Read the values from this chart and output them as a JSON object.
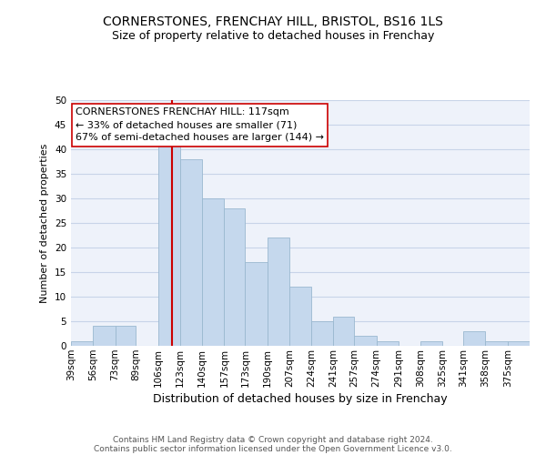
{
  "title": "CORNERSTONES, FRENCHAY HILL, BRISTOL, BS16 1LS",
  "subtitle": "Size of property relative to detached houses in Frenchay",
  "xlabel": "Distribution of detached houses by size in Frenchay",
  "ylabel": "Number of detached properties",
  "footer_line1": "Contains HM Land Registry data © Crown copyright and database right 2024.",
  "footer_line2": "Contains public sector information licensed under the Open Government Licence v3.0.",
  "bin_labels": [
    "39sqm",
    "56sqm",
    "73sqm",
    "89sqm",
    "106sqm",
    "123sqm",
    "140sqm",
    "157sqm",
    "173sqm",
    "190sqm",
    "207sqm",
    "224sqm",
    "241sqm",
    "257sqm",
    "274sqm",
    "291sqm",
    "308sqm",
    "325sqm",
    "341sqm",
    "358sqm",
    "375sqm"
  ],
  "bin_edges": [
    39,
    56,
    73,
    89,
    106,
    123,
    140,
    157,
    173,
    190,
    207,
    224,
    241,
    257,
    274,
    291,
    308,
    325,
    341,
    358,
    375,
    392
  ],
  "bar_heights": [
    1,
    4,
    4,
    0,
    41,
    38,
    30,
    28,
    17,
    22,
    12,
    5,
    6,
    2,
    1,
    0,
    1,
    0,
    3,
    1,
    1
  ],
  "bar_color": "#c5d8ed",
  "bar_edgecolor": "#9ab8d0",
  "vline_x": 117,
  "vline_color": "#cc0000",
  "annotation_line1": "CORNERSTONES FRENCHAY HILL: 117sqm",
  "annotation_line2": "← 33% of detached houses are smaller (71)",
  "annotation_line3": "67% of semi-detached houses are larger (144) →",
  "annotation_box_edgecolor": "#cc0000",
  "ylim": [
    0,
    50
  ],
  "yticks": [
    0,
    5,
    10,
    15,
    20,
    25,
    30,
    35,
    40,
    45,
    50
  ],
  "grid_color": "#c8d4e8",
  "background_color": "#eef2fa",
  "title_fontsize": 10,
  "subtitle_fontsize": 9,
  "xlabel_fontsize": 9,
  "ylabel_fontsize": 8,
  "tick_fontsize": 7.5,
  "annotation_fontsize": 8,
  "footer_fontsize": 6.5
}
